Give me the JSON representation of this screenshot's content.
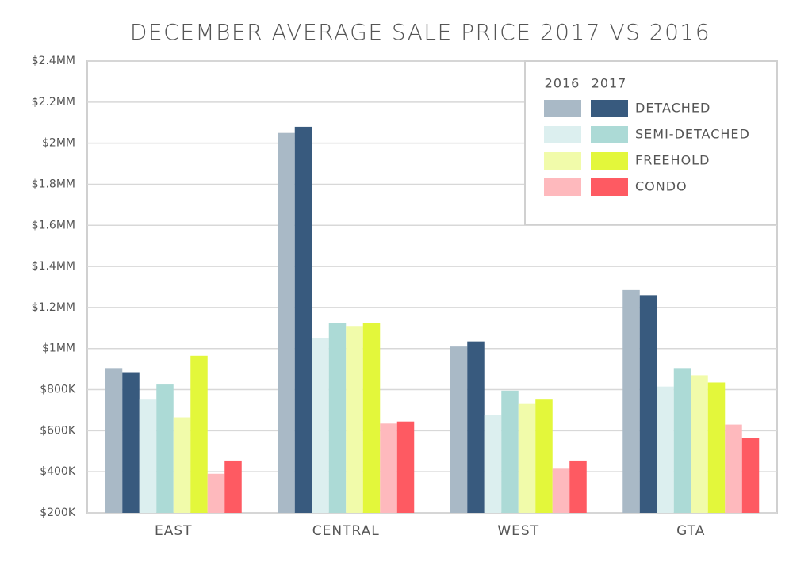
{
  "chart_data": {
    "type": "grouped-bar",
    "title": "DECEMBER AVERAGE SALE PRICE 2017 VS 2016",
    "categories": [
      "EAST",
      "CENTRAL",
      "WEST",
      "GTA"
    ],
    "years": [
      "2016",
      "2017"
    ],
    "series": [
      {
        "name": "DETACHED",
        "colors": [
          "#a9b9c6",
          "#385a7e"
        ],
        "values": [
          [
            905000,
            2050000,
            1010000,
            1285000
          ],
          [
            885000,
            2080000,
            1035000,
            1260000
          ]
        ]
      },
      {
        "name": "SEMI-DETACHED",
        "colors": [
          "#dcefef",
          "#acdad6"
        ],
        "values": [
          [
            755000,
            1050000,
            675000,
            815000
          ],
          [
            825000,
            1125000,
            795000,
            905000
          ]
        ]
      },
      {
        "name": "FREEHOLD",
        "colors": [
          "#f1fbaa",
          "#e3f73b"
        ],
        "values": [
          [
            665000,
            1110000,
            730000,
            870000
          ],
          [
            965000,
            1125000,
            755000,
            835000
          ]
        ]
      },
      {
        "name": "CONDO",
        "colors": [
          "#feb9bd",
          "#fe5a62"
        ],
        "values": [
          [
            390000,
            635000,
            415000,
            630000
          ],
          [
            455000,
            645000,
            455000,
            565000
          ]
        ]
      }
    ],
    "ylim": [
      200000,
      2400000
    ],
    "yticks": [
      {
        "value": 200000,
        "label": "$200K"
      },
      {
        "value": 400000,
        "label": "$400K"
      },
      {
        "value": 600000,
        "label": "$600K"
      },
      {
        "value": 800000,
        "label": "$800K"
      },
      {
        "value": 1000000,
        "label": "$1MM"
      },
      {
        "value": 1200000,
        "label": "$1.2MM"
      },
      {
        "value": 1400000,
        "label": "$1.4MM"
      },
      {
        "value": 1600000,
        "label": "$1.6MM"
      },
      {
        "value": 1800000,
        "label": "$1.8MM"
      },
      {
        "value": 2000000,
        "label": "$2MM"
      },
      {
        "value": 2200000,
        "label": "$2.2MM"
      },
      {
        "value": 2400000,
        "label": "$2.4MM"
      }
    ],
    "grid": true
  }
}
